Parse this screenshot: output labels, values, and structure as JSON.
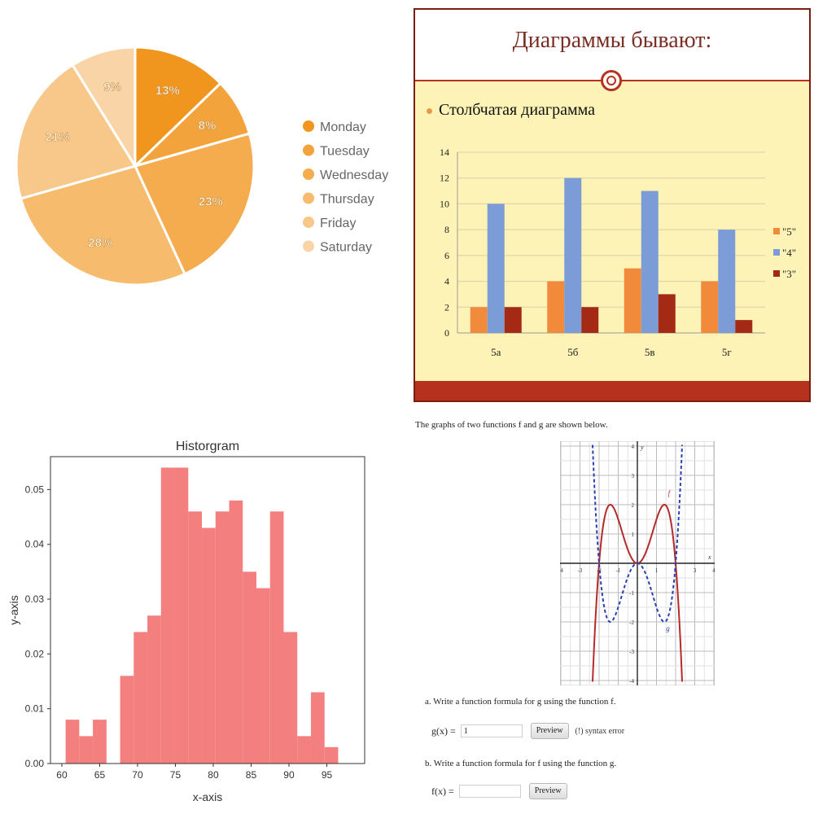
{
  "chart_data": [
    {
      "type": "pie",
      "title": "",
      "legend_position": "right",
      "labels": [
        "Monday",
        "Tuesday",
        "Wednesday",
        "Thursday",
        "Friday",
        "Saturday"
      ],
      "values": [
        13,
        8,
        23,
        28,
        21,
        9
      ],
      "value_labels": [
        "13%",
        "8%",
        "23%",
        "28%",
        "21%",
        "9%"
      ],
      "colors": [
        "#f0961e",
        "#f3a33c",
        "#f4ac4e",
        "#f6bb6d",
        "#f8c78a",
        "#f9d4a6"
      ]
    },
    {
      "type": "bar",
      "title": "Диаграммы бывают:",
      "subtitle": "Столбчатая диаграмма",
      "categories": [
        "5а",
        "5б",
        "5в",
        "5г"
      ],
      "series": [
        {
          "name": "\"5\"",
          "values": [
            2,
            4,
            5,
            4
          ],
          "color": "#f28a3c"
        },
        {
          "name": "\"4\"",
          "values": [
            10,
            12,
            11,
            8
          ],
          "color": "#7b9cd6"
        },
        {
          "name": "\"3\"",
          "values": [
            2,
            2,
            3,
            1
          ],
          "color": "#a52a16"
        }
      ],
      "ylim": [
        0,
        14
      ],
      "yticks": [
        "0",
        "2",
        "4",
        "6",
        "8",
        "10",
        "12",
        "14"
      ],
      "grid": true,
      "legend_position": "right"
    },
    {
      "type": "bar",
      "title": "Historgram",
      "xlabel": "x-axis",
      "ylabel": "y-axis",
      "bin_edges": [
        60.5,
        62.3,
        64.1,
        65.9,
        67.7,
        69.5,
        71.3,
        73.1,
        74.9,
        76.7,
        78.5,
        80.3,
        82.1,
        83.9,
        85.7,
        87.5,
        89.3,
        91.1,
        92.9,
        94.7,
        96.5,
        98.3
      ],
      "values": [
        0.008,
        0.005,
        0.008,
        0.0,
        0.016,
        0.024,
        0.027,
        0.054,
        0.054,
        0.046,
        0.043,
        0.046,
        0.048,
        0.035,
        0.032,
        0.046,
        0.024,
        0.005,
        0.013,
        0.003,
        0.0
      ],
      "xlim": [
        58.5,
        100
      ],
      "ylim": [
        0,
        0.056
      ],
      "xticks": [
        "60",
        "65",
        "70",
        "75",
        "80",
        "85",
        "90",
        "95"
      ],
      "yticks": [
        "0.00",
        "0.01",
        "0.02",
        "0.03",
        "0.04",
        "0.05"
      ],
      "color": "#f47f7f"
    },
    {
      "type": "line",
      "xlim": [
        -4,
        4
      ],
      "ylim": [
        -4,
        4
      ],
      "xticks": [
        "-4",
        "-3",
        "-2",
        "-1",
        "1",
        "2",
        "3",
        "4"
      ],
      "yticks": [
        "4",
        "3",
        "2",
        "1",
        "-1",
        "-2",
        "-3",
        "-4"
      ],
      "series": [
        {
          "name": "f",
          "style": "solid",
          "color": "#b52a2a"
        },
        {
          "name": "g",
          "style": "dashed",
          "color": "#2a3fb5"
        }
      ],
      "axis_labels": {
        "x": "x",
        "y": "y"
      },
      "grid": true
    }
  ],
  "func": {
    "intro": "The graphs of two functions f and g are shown below.",
    "qa": "a. Write a function formula for g using the function f.",
    "qb": "b. Write a function formula for f using the function g.",
    "g_label": "g(x) =",
    "g_value": "1",
    "f_label": "f(x) =",
    "f_value": "",
    "preview": "Preview",
    "error": "(!) syntax error"
  }
}
